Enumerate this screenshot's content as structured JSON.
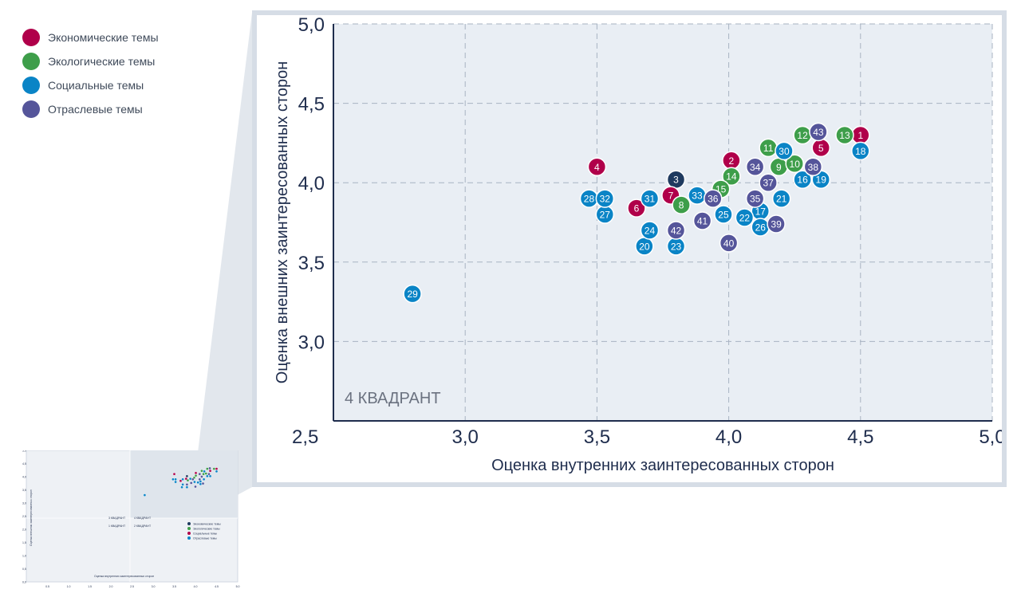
{
  "legend": {
    "items": [
      {
        "label": "Экономические темы",
        "color": "#b0004a"
      },
      {
        "label": "Экологические темы",
        "color": "#3e9e4a"
      },
      {
        "label": "Социальные темы",
        "color": "#0a84c6"
      },
      {
        "label": "Отраслевые темы",
        "color": "#55559a"
      }
    ]
  },
  "chart_data": [
    {
      "type": "scatter",
      "title": "",
      "xlabel": "Оценка внутренних заинтересованных сторон",
      "ylabel": "Оценка внешних заинтересованных сторон",
      "xlim": [
        2.5,
        5.0
      ],
      "ylim": [
        2.5,
        5.0
      ],
      "x_ticks": [
        "2,5",
        "3,0",
        "3,5",
        "4,0",
        "4,5",
        "5,0"
      ],
      "y_ticks": [
        "3,0",
        "3,5",
        "4,0",
        "4,5",
        "5,0"
      ],
      "y_origin_label": "2,5",
      "grid": true,
      "quadrant_label": "4 КВАДРАНТ",
      "colors": {
        "economic": "#b0004a",
        "ecological": "#3e9e4a",
        "social": "#0a84c6",
        "industry": "#55559a",
        "dark": "#1f3a5f"
      },
      "points": [
        {
          "label": "1",
          "x": 4.5,
          "y": 4.3,
          "group": "economic"
        },
        {
          "label": "2",
          "x": 4.01,
          "y": 4.14,
          "group": "economic"
        },
        {
          "label": "3",
          "x": 3.8,
          "y": 4.02,
          "group": "dark"
        },
        {
          "label": "4",
          "x": 3.5,
          "y": 4.1,
          "group": "economic"
        },
        {
          "label": "5",
          "x": 4.35,
          "y": 4.22,
          "group": "economic"
        },
        {
          "label": "6",
          "x": 3.65,
          "y": 3.84,
          "group": "economic"
        },
        {
          "label": "7",
          "x": 3.78,
          "y": 3.92,
          "group": "economic"
        },
        {
          "label": "8",
          "x": 3.82,
          "y": 3.86,
          "group": "ecological"
        },
        {
          "label": "9",
          "x": 4.19,
          "y": 4.1,
          "group": "ecological"
        },
        {
          "label": "10",
          "x": 4.25,
          "y": 4.12,
          "group": "ecological"
        },
        {
          "label": "11",
          "x": 4.15,
          "y": 4.22,
          "group": "ecological"
        },
        {
          "label": "12",
          "x": 4.28,
          "y": 4.3,
          "group": "ecological"
        },
        {
          "label": "13",
          "x": 4.44,
          "y": 4.3,
          "group": "ecological"
        },
        {
          "label": "14",
          "x": 4.01,
          "y": 4.04,
          "group": "ecological"
        },
        {
          "label": "15",
          "x": 3.97,
          "y": 3.96,
          "group": "ecological"
        },
        {
          "label": "16",
          "x": 4.28,
          "y": 4.02,
          "group": "social"
        },
        {
          "label": "17",
          "x": 4.12,
          "y": 3.82,
          "group": "social"
        },
        {
          "label": "18",
          "x": 4.5,
          "y": 4.2,
          "group": "social"
        },
        {
          "label": "19",
          "x": 4.35,
          "y": 4.02,
          "group": "social"
        },
        {
          "label": "20",
          "x": 3.68,
          "y": 3.6,
          "group": "social"
        },
        {
          "label": "21",
          "x": 4.2,
          "y": 3.9,
          "group": "social"
        },
        {
          "label": "22",
          "x": 4.06,
          "y": 3.78,
          "group": "social"
        },
        {
          "label": "23",
          "x": 3.8,
          "y": 3.6,
          "group": "social"
        },
        {
          "label": "24",
          "x": 3.7,
          "y": 3.7,
          "group": "social"
        },
        {
          "label": "25",
          "x": 3.98,
          "y": 3.8,
          "group": "social"
        },
        {
          "label": "26",
          "x": 4.12,
          "y": 3.72,
          "group": "social"
        },
        {
          "label": "27",
          "x": 3.53,
          "y": 3.8,
          "group": "social"
        },
        {
          "label": "28",
          "x": 3.47,
          "y": 3.9,
          "group": "social"
        },
        {
          "label": "29",
          "x": 2.8,
          "y": 3.3,
          "group": "social"
        },
        {
          "label": "30",
          "x": 4.21,
          "y": 4.2,
          "group": "social"
        },
        {
          "label": "31",
          "x": 3.7,
          "y": 3.9,
          "group": "social"
        },
        {
          "label": "32",
          "x": 3.53,
          "y": 3.9,
          "group": "social"
        },
        {
          "label": "33",
          "x": 3.88,
          "y": 3.92,
          "group": "social"
        },
        {
          "label": "34",
          "x": 4.1,
          "y": 4.1,
          "group": "industry"
        },
        {
          "label": "35",
          "x": 4.1,
          "y": 3.9,
          "group": "industry"
        },
        {
          "label": "36",
          "x": 3.94,
          "y": 3.9,
          "group": "industry"
        },
        {
          "label": "37",
          "x": 4.15,
          "y": 4.0,
          "group": "industry"
        },
        {
          "label": "38",
          "x": 4.32,
          "y": 4.1,
          "group": "industry"
        },
        {
          "label": "39",
          "x": 4.18,
          "y": 3.74,
          "group": "industry"
        },
        {
          "label": "40",
          "x": 4.0,
          "y": 3.62,
          "group": "industry"
        },
        {
          "label": "41",
          "x": 3.9,
          "y": 3.76,
          "group": "industry"
        },
        {
          "label": "42",
          "x": 3.8,
          "y": 3.7,
          "group": "industry"
        },
        {
          "label": "43",
          "x": 4.34,
          "y": 4.32,
          "group": "industry"
        }
      ]
    },
    {
      "type": "scatter",
      "title": "",
      "xlabel": "Оценка внутренних заинтересованных сторон",
      "ylabel": "Оценка внешних заинтересованных сторон",
      "xlim": [
        0,
        5.0
      ],
      "ylim": [
        0,
        5.0
      ],
      "x_ticks": [
        "0,5",
        "1,0",
        "1,5",
        "2,0",
        "2,5",
        "3,0",
        "3,5",
        "4,0",
        "4,5",
        "5,0"
      ],
      "y_ticks": [
        "0,0",
        "0,5",
        "1,0",
        "1,5",
        "2,0",
        "2,5",
        "3,0",
        "3,5",
        "4,0",
        "4,5",
        "5,0"
      ],
      "quadrant_labels": [
        "3 КВАДРАНТ",
        "4 КВАДРАНТ",
        "1 КВАДРАНТ",
        "2 КВАДРАНТ"
      ],
      "legend": [
        "Экономические темы",
        "Экологические темы",
        "Социальные темы",
        "Отраслевые темы"
      ]
    }
  ]
}
